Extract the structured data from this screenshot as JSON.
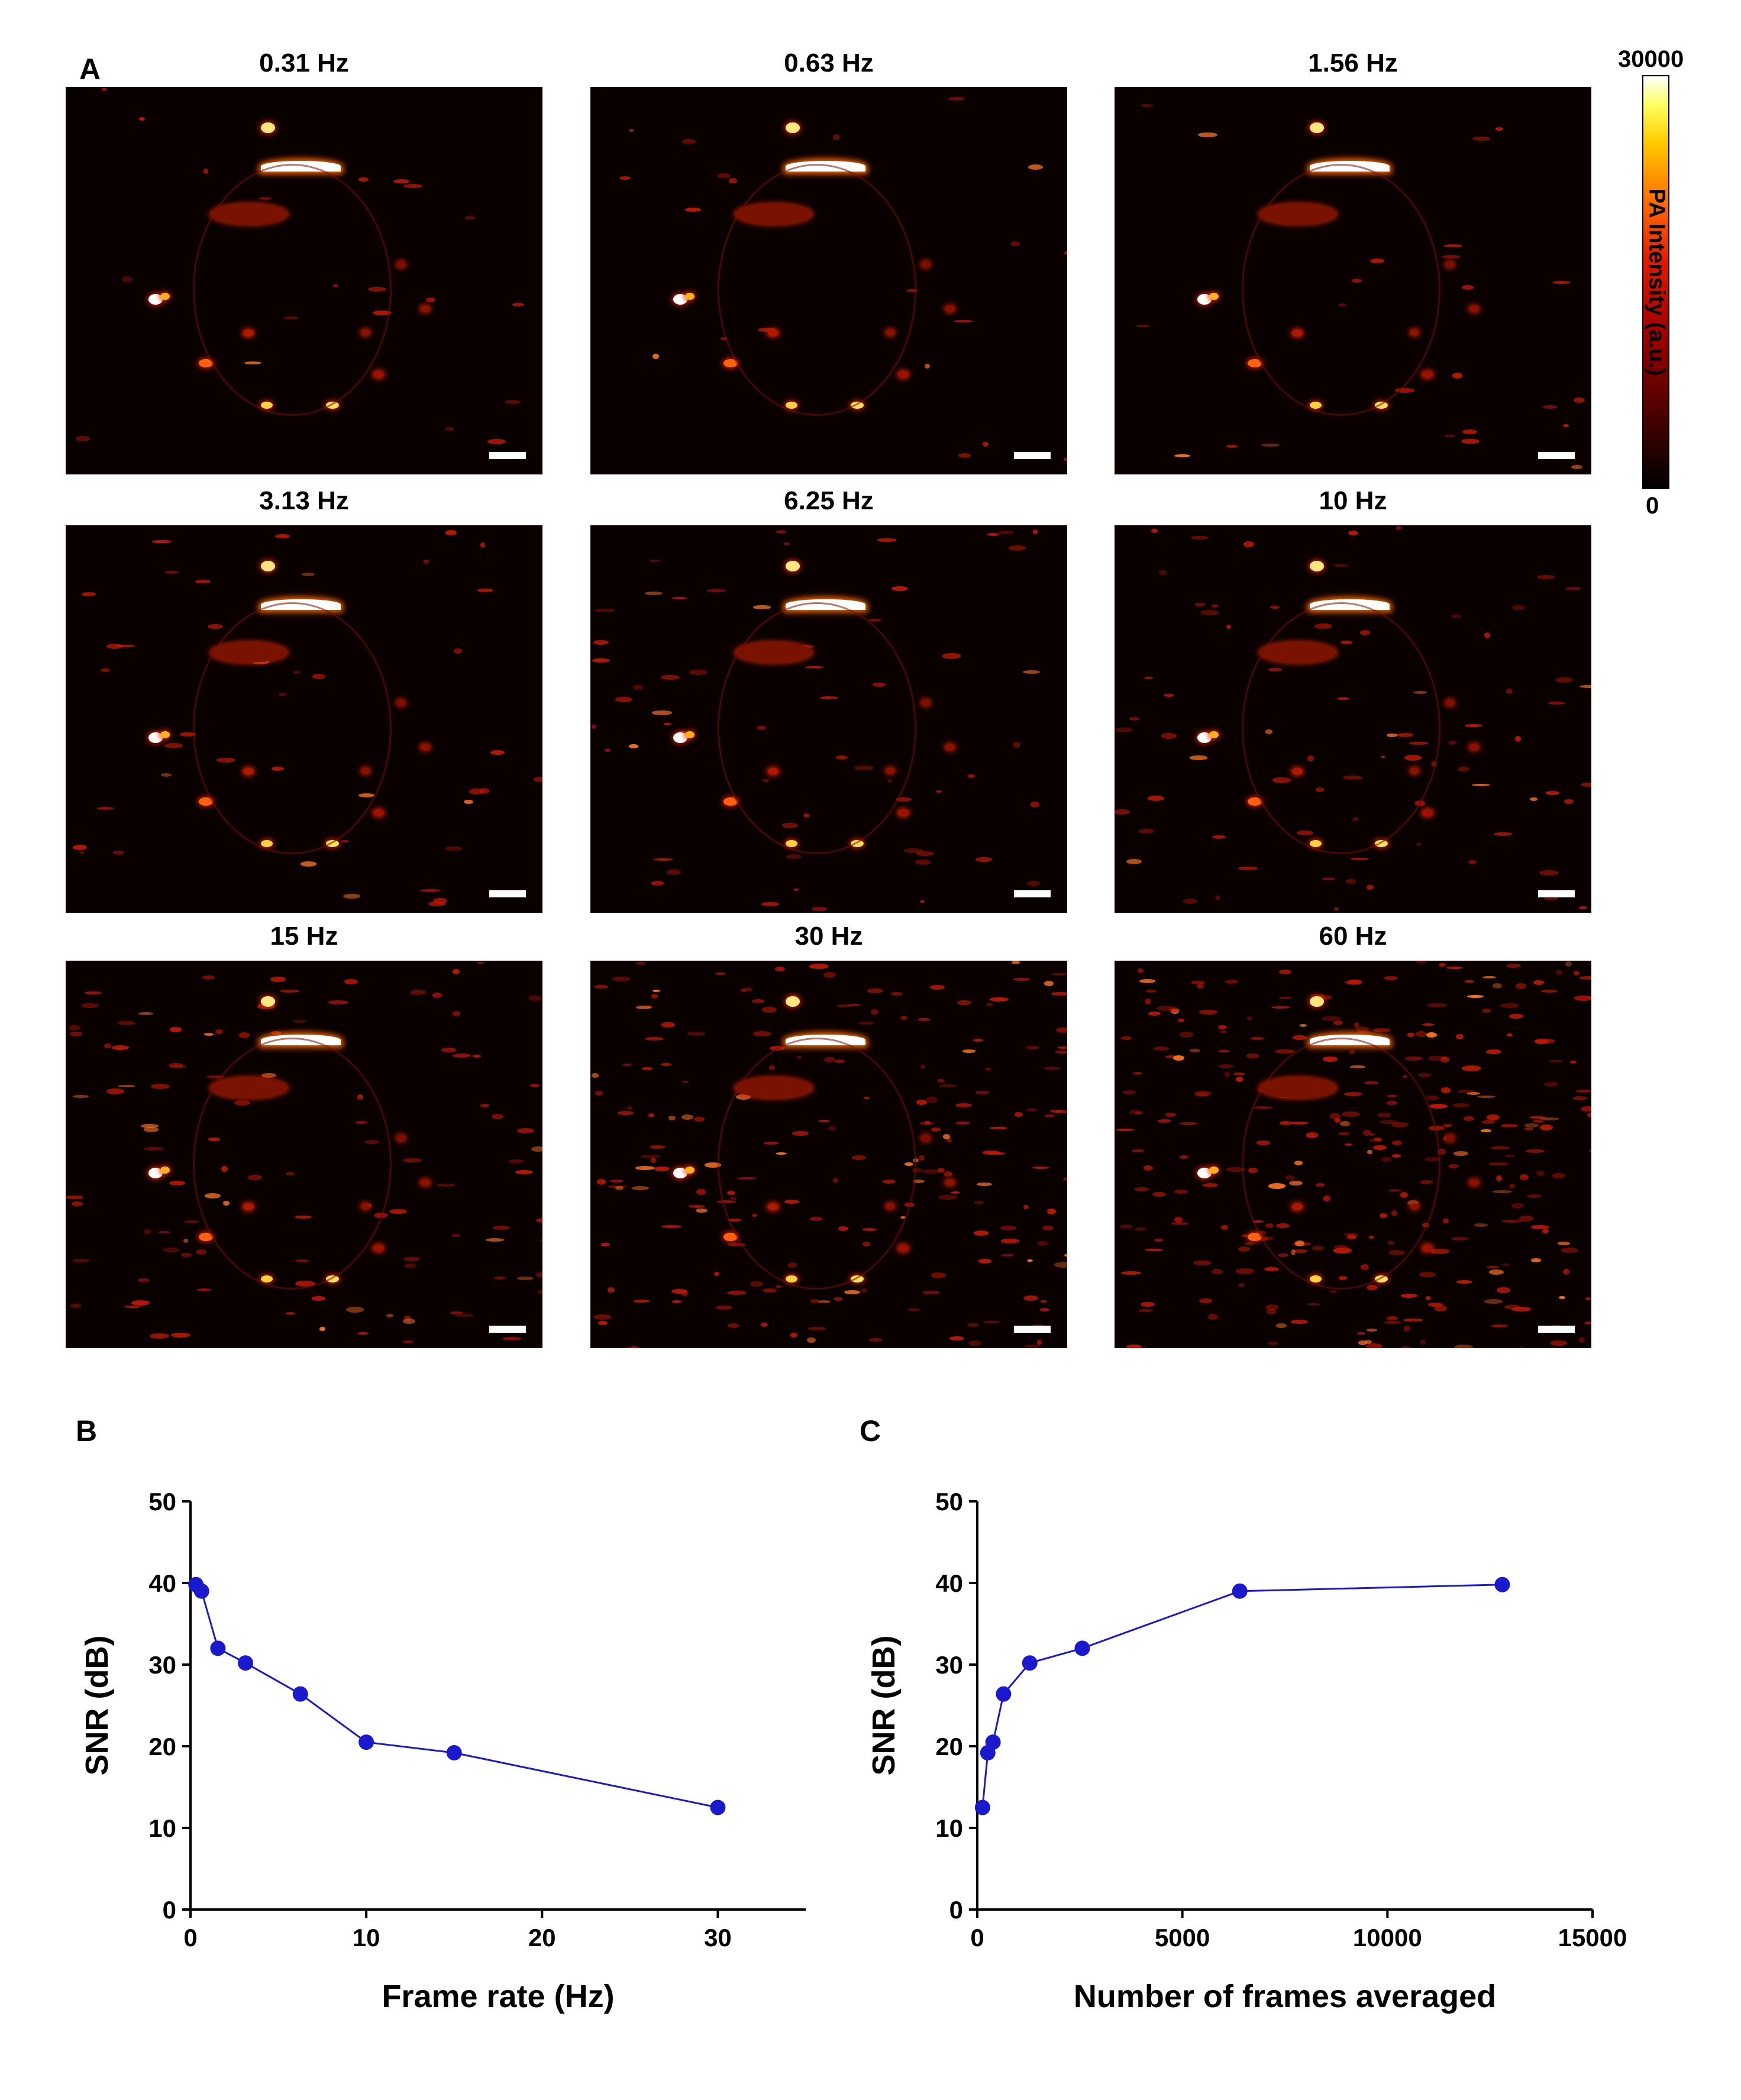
{
  "panel_letters": {
    "a": "A",
    "b": "B",
    "c": "C"
  },
  "images": [
    {
      "title": "0.31 Hz",
      "noise": 0.05
    },
    {
      "title": "0.63 Hz",
      "noise": 0.05
    },
    {
      "title": "1.56 Hz",
      "noise": 0.06
    },
    {
      "title": "3.13 Hz",
      "noise": 0.1
    },
    {
      "title": "6.25 Hz",
      "noise": 0.14
    },
    {
      "title": "10 Hz",
      "noise": 0.18
    },
    {
      "title": "15 Hz",
      "noise": 0.26
    },
    {
      "title": "30 Hz",
      "noise": 0.45
    },
    {
      "title": "60 Hz",
      "noise": 0.7
    }
  ],
  "colorbar": {
    "max_label": "30000",
    "min_label": "0",
    "title": "PA Intensity (a.u.)",
    "colors": [
      "#000000",
      "#a00000",
      "#ff7000",
      "#ffff60",
      "#ffffff"
    ]
  },
  "chart_data": [
    {
      "type": "line",
      "xlabel": "Frame rate (Hz)",
      "ylabel": "SNR (dB)",
      "xlim": [
        0,
        35
      ],
      "ylim": [
        0,
        50
      ],
      "xticks": [
        0,
        10,
        20,
        30
      ],
      "yticks": [
        0,
        10,
        20,
        30,
        40,
        50
      ],
      "x": [
        0.31,
        0.63,
        1.56,
        3.13,
        6.25,
        10,
        15,
        30
      ],
      "y": [
        39.8,
        39,
        32,
        30.2,
        26.4,
        20.5,
        19.2,
        12.5
      ],
      "color": "#1a1acc"
    },
    {
      "type": "line",
      "xlabel": "Number of frames averaged",
      "ylabel": "SNR (dB)",
      "xlim": [
        0,
        15000
      ],
      "ylim": [
        0,
        50
      ],
      "xticks": [
        0,
        5000,
        10000,
        15000
      ],
      "yticks": [
        0,
        10,
        20,
        30,
        40,
        50
      ],
      "x": [
        128,
        256,
        384,
        640,
        1280,
        2560,
        6400,
        12800
      ],
      "y": [
        12.5,
        19.2,
        20.5,
        26.4,
        30.2,
        32,
        39,
        39.8
      ],
      "color": "#1a1acc"
    }
  ]
}
